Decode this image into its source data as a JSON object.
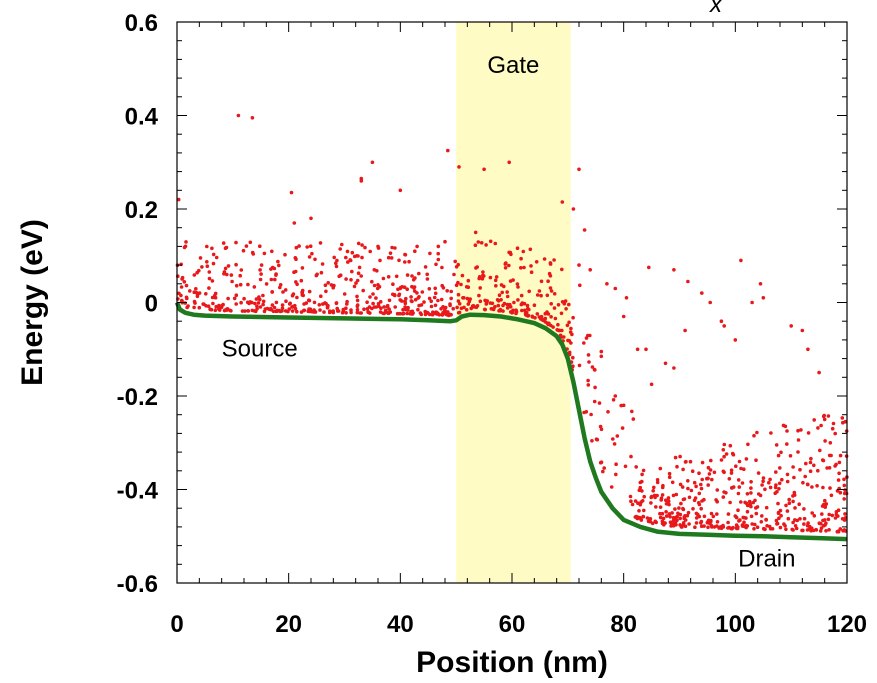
{
  "chart_data": {
    "type": "scatter",
    "title": "",
    "xlabel": "Position (nm)",
    "ylabel": "Energy (eV)",
    "xlim": [
      0,
      120
    ],
    "ylim": [
      -0.6,
      0.6
    ],
    "xticks": [
      0,
      20,
      40,
      60,
      80,
      100,
      120
    ],
    "xtick_labels": [
      "0",
      "20",
      "40",
      "60",
      "80",
      "100",
      "120"
    ],
    "yticks": [
      0.6,
      0.4,
      0.2,
      0,
      -0.2,
      -0.4,
      -0.6
    ],
    "ytick_labels": [
      "0.6",
      "0.4",
      "0.2",
      "0",
      "-0.2",
      "-0.4",
      "-0.6"
    ],
    "grid": false,
    "corner_label": "x",
    "colors": {
      "gate_region": "#fffbc4",
      "band_curve": "#1f7a1f",
      "points": "#e8181b"
    },
    "gate_region": {
      "x": [
        50,
        70.5
      ],
      "label": "Gate"
    },
    "annotations": [
      {
        "text": "Source",
        "x": 8,
        "y": -0.115
      },
      {
        "text": "Drain",
        "x": 100.5,
        "y": -0.565
      }
    ],
    "band_curve": [
      [
        0,
        0.0
      ],
      [
        0.5,
        -0.015
      ],
      [
        1.5,
        -0.022
      ],
      [
        3,
        -0.026
      ],
      [
        5,
        -0.028
      ],
      [
        10,
        -0.03
      ],
      [
        20,
        -0.032
      ],
      [
        30,
        -0.034
      ],
      [
        40,
        -0.036
      ],
      [
        45,
        -0.038
      ],
      [
        49,
        -0.04
      ],
      [
        50,
        -0.038
      ],
      [
        51,
        -0.03
      ],
      [
        52.5,
        -0.026
      ],
      [
        55,
        -0.027
      ],
      [
        58,
        -0.03
      ],
      [
        61,
        -0.036
      ],
      [
        64,
        -0.044
      ],
      [
        66,
        -0.055
      ],
      [
        68,
        -0.072
      ],
      [
        69,
        -0.09
      ],
      [
        70,
        -0.12
      ],
      [
        71,
        -0.17
      ],
      [
        72,
        -0.23
      ],
      [
        73,
        -0.29
      ],
      [
        74,
        -0.34
      ],
      [
        75,
        -0.375
      ],
      [
        76,
        -0.405
      ],
      [
        78,
        -0.44
      ],
      [
        80,
        -0.465
      ],
      [
        83,
        -0.48
      ],
      [
        86,
        -0.49
      ],
      [
        90,
        -0.495
      ],
      [
        95,
        -0.497
      ],
      [
        100,
        -0.499
      ],
      [
        105,
        -0.5
      ],
      [
        110,
        -0.502
      ],
      [
        115,
        -0.504
      ],
      [
        120,
        -0.506
      ]
    ],
    "series": [
      {
        "points": [
          [
            0.3,
            0.22
          ],
          [
            11,
            0.4
          ],
          [
            13.5,
            0.395
          ],
          [
            20.5,
            0.235
          ],
          [
            21,
            0.17
          ],
          [
            24,
            0.18
          ],
          [
            33,
            0.26
          ],
          [
            33,
            0.265
          ],
          [
            35,
            0.3
          ],
          [
            36,
            0.12
          ],
          [
            40,
            0.24
          ],
          [
            43,
            0.12
          ],
          [
            48,
            0.13
          ],
          [
            48.5,
            0.325
          ],
          [
            50.5,
            0.29
          ],
          [
            53.5,
            0.15
          ],
          [
            55,
            0.285
          ],
          [
            59.5,
            0.3
          ],
          [
            69,
            0.215
          ],
          [
            71,
            0.2
          ],
          [
            72,
            0.285
          ],
          [
            73,
            0.155
          ],
          [
            72,
            0.08
          ],
          [
            74,
            0.07
          ],
          [
            77,
            0.04
          ],
          [
            78.5,
            0.03
          ],
          [
            80.5,
            0.01
          ],
          [
            80,
            -0.03
          ],
          [
            84.5,
            0.075
          ],
          [
            89,
            0.07
          ],
          [
            91.5,
            0.045
          ],
          [
            94,
            0.02
          ],
          [
            95.5,
            0.0
          ],
          [
            97.5,
            -0.04
          ],
          [
            101,
            0.09
          ],
          [
            103,
            0.0
          ],
          [
            104.5,
            0.04
          ],
          [
            105,
            0.01
          ],
          [
            110,
            -0.05
          ],
          [
            112,
            -0.06
          ],
          [
            113,
            -0.1
          ],
          [
            76,
            -0.105
          ],
          [
            76,
            -0.115
          ],
          [
            78.5,
            -0.2
          ],
          [
            80,
            -0.22
          ],
          [
            82.5,
            -0.1
          ],
          [
            84,
            -0.1
          ],
          [
            85,
            -0.175
          ],
          [
            87.5,
            -0.13
          ],
          [
            89,
            -0.14
          ],
          [
            91,
            -0.06
          ],
          [
            98,
            -0.05
          ],
          [
            100,
            -0.08
          ],
          [
            115,
            -0.15
          ],
          [
            116,
            -0.25
          ],
          [
            117,
            -0.3
          ],
          [
            118.5,
            -0.38
          ],
          [
            119.5,
            -0.42
          ]
        ]
      }
    ]
  }
}
